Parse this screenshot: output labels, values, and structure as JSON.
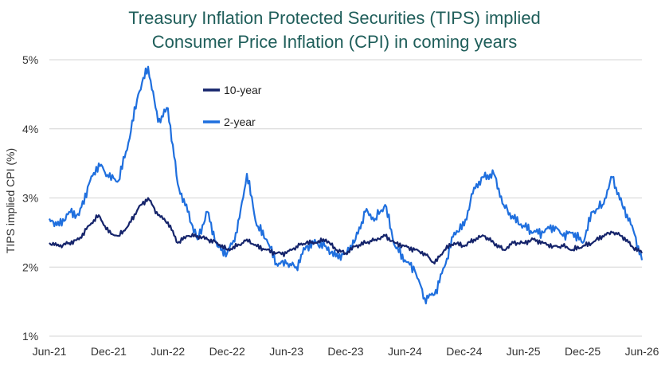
{
  "chart_data": {
    "type": "line",
    "title": "Treasury Inflation Protected Securities (TIPS) implied",
    "subtitle": "Consumer Price Inflation (CPI) in coming years",
    "xlabel": "",
    "ylabel": "TIPS implied CPI (%)",
    "x_range": [
      "Jun-21",
      "Jun-26"
    ],
    "ylim": [
      1,
      5
    ],
    "y_ticks": [
      "1%",
      "2%",
      "3%",
      "4%",
      "5%"
    ],
    "x_ticks": [
      "Jun-21",
      "Dec-21",
      "Jun-22",
      "Dec-22",
      "Jun-23",
      "Dec-23",
      "Jun-24",
      "Dec-24",
      "Jun-25",
      "Dec-25",
      "Jun-26"
    ],
    "grid": "horizontal",
    "legend_position": "top-left",
    "series": [
      {
        "name": "10-year",
        "color": "#15246b",
        "points": [
          [
            "2021-06",
            2.35
          ],
          [
            "2021-07",
            2.3
          ],
          [
            "2021-08",
            2.35
          ],
          [
            "2021-09",
            2.4
          ],
          [
            "2021-10",
            2.6
          ],
          [
            "2021-11",
            2.75
          ],
          [
            "2021-12",
            2.5
          ],
          [
            "2022-01",
            2.45
          ],
          [
            "2022-02",
            2.6
          ],
          [
            "2022-03",
            2.85
          ],
          [
            "2022-04",
            3.0
          ],
          [
            "2022-05",
            2.75
          ],
          [
            "2022-06",
            2.65
          ],
          [
            "2022-07",
            2.35
          ],
          [
            "2022-08",
            2.45
          ],
          [
            "2022-09",
            2.45
          ],
          [
            "2022-10",
            2.4
          ],
          [
            "2022-11",
            2.35
          ],
          [
            "2022-12",
            2.25
          ],
          [
            "2023-01",
            2.3
          ],
          [
            "2023-02",
            2.4
          ],
          [
            "2023-03",
            2.3
          ],
          [
            "2023-04",
            2.25
          ],
          [
            "2023-05",
            2.2
          ],
          [
            "2023-06",
            2.2
          ],
          [
            "2023-07",
            2.3
          ],
          [
            "2023-08",
            2.35
          ],
          [
            "2023-09",
            2.35
          ],
          [
            "2023-10",
            2.4
          ],
          [
            "2023-11",
            2.25
          ],
          [
            "2023-12",
            2.2
          ],
          [
            "2024-01",
            2.3
          ],
          [
            "2024-02",
            2.35
          ],
          [
            "2024-03",
            2.4
          ],
          [
            "2024-04",
            2.45
          ],
          [
            "2024-05",
            2.35
          ],
          [
            "2024-06",
            2.3
          ],
          [
            "2024-07",
            2.25
          ],
          [
            "2024-08",
            2.2
          ],
          [
            "2024-09",
            2.05
          ],
          [
            "2024-10",
            2.25
          ],
          [
            "2024-11",
            2.35
          ],
          [
            "2024-12",
            2.3
          ],
          [
            "2025-01",
            2.4
          ],
          [
            "2025-02",
            2.45
          ],
          [
            "2025-03",
            2.35
          ],
          [
            "2025-04",
            2.25
          ],
          [
            "2025-05",
            2.35
          ],
          [
            "2025-06",
            2.35
          ],
          [
            "2025-07",
            2.4
          ],
          [
            "2025-08",
            2.35
          ],
          [
            "2025-09",
            2.3
          ],
          [
            "2025-10",
            2.3
          ],
          [
            "2025-11",
            2.25
          ],
          [
            "2025-12",
            2.3
          ],
          [
            "2026-01",
            2.35
          ],
          [
            "2026-02",
            2.45
          ],
          [
            "2026-03",
            2.5
          ],
          [
            "2026-04",
            2.45
          ],
          [
            "2026-05",
            2.3
          ],
          [
            "2026-06",
            2.2
          ]
        ]
      },
      {
        "name": "2-year",
        "color": "#1f6fde",
        "points": [
          [
            "2021-06",
            2.7
          ],
          [
            "2021-07",
            2.6
          ],
          [
            "2021-08",
            2.8
          ],
          [
            "2021-09",
            2.75
          ],
          [
            "2021-10",
            3.2
          ],
          [
            "2021-11",
            3.5
          ],
          [
            "2021-12",
            3.3
          ],
          [
            "2022-01",
            3.25
          ],
          [
            "2022-02",
            3.8
          ],
          [
            "2022-03",
            4.5
          ],
          [
            "2022-04",
            4.9
          ],
          [
            "2022-05",
            4.1
          ],
          [
            "2022-06",
            4.3
          ],
          [
            "2022-07",
            3.2
          ],
          [
            "2022-08",
            2.8
          ],
          [
            "2022-09",
            2.4
          ],
          [
            "2022-10",
            2.8
          ],
          [
            "2022-11",
            2.3
          ],
          [
            "2022-12",
            2.2
          ],
          [
            "2023-01",
            2.5
          ],
          [
            "2023-02",
            3.35
          ],
          [
            "2023-03",
            2.6
          ],
          [
            "2023-04",
            2.4
          ],
          [
            "2023-05",
            2.05
          ],
          [
            "2023-06",
            2.05
          ],
          [
            "2023-07",
            2.0
          ],
          [
            "2023-08",
            2.3
          ],
          [
            "2023-09",
            2.35
          ],
          [
            "2023-10",
            2.3
          ],
          [
            "2023-11",
            2.15
          ],
          [
            "2023-12",
            2.2
          ],
          [
            "2024-01",
            2.4
          ],
          [
            "2024-02",
            2.8
          ],
          [
            "2024-03",
            2.7
          ],
          [
            "2024-04",
            2.9
          ],
          [
            "2024-05",
            2.3
          ],
          [
            "2024-06",
            2.1
          ],
          [
            "2024-07",
            1.95
          ],
          [
            "2024-08",
            1.55
          ],
          [
            "2024-09",
            1.6
          ],
          [
            "2024-10",
            2.0
          ],
          [
            "2024-11",
            2.5
          ],
          [
            "2024-12",
            2.6
          ],
          [
            "2025-01",
            3.15
          ],
          [
            "2025-02",
            3.3
          ],
          [
            "2025-03",
            3.35
          ],
          [
            "2025-04",
            2.9
          ],
          [
            "2025-05",
            2.7
          ],
          [
            "2025-06",
            2.6
          ],
          [
            "2025-07",
            2.5
          ],
          [
            "2025-08",
            2.5
          ],
          [
            "2025-09",
            2.6
          ],
          [
            "2025-10",
            2.45
          ],
          [
            "2025-11",
            2.5
          ],
          [
            "2025-12",
            2.35
          ],
          [
            "2026-01",
            2.8
          ],
          [
            "2026-02",
            2.9
          ],
          [
            "2026-03",
            3.3
          ],
          [
            "2026-04",
            2.9
          ],
          [
            "2026-05",
            2.6
          ],
          [
            "2026-06",
            2.1
          ]
        ]
      }
    ]
  }
}
